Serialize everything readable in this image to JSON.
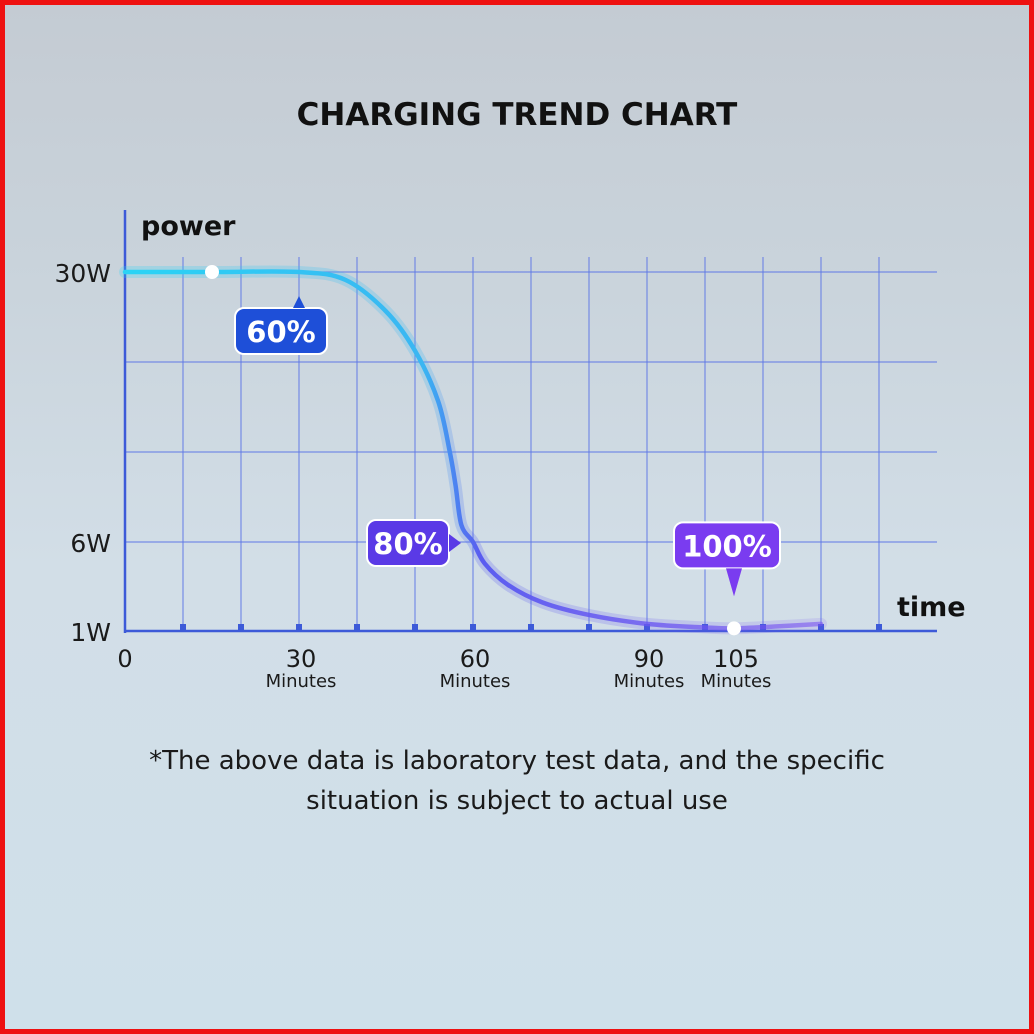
{
  "colors": {
    "grid": "#5f78e6",
    "axis": "#3d5ad8",
    "curve_start": "#2ad4f5",
    "curve_end": "#6a3cf0",
    "badge_60": "#1e4fd8",
    "badge_80": "#5a3ae6",
    "badge_100": "#7a3cf0",
    "frame": "#ee1111"
  },
  "footnote": {
    "line1": "*The above data is laboratory test data, and the specific",
    "line2": "situation is subject to actual use"
  },
  "chart_data": {
    "type": "line",
    "title": "CHARGING TREND CHART",
    "xlabel": "time",
    "ylabel": "power",
    "x_ticks": [
      {
        "value": 0,
        "label": "0",
        "unit": ""
      },
      {
        "value": 30,
        "label": "30",
        "unit": "Minutes"
      },
      {
        "value": 60,
        "label": "60",
        "unit": "Minutes"
      },
      {
        "value": 90,
        "label": "90",
        "unit": "Minutes"
      },
      {
        "value": 105,
        "label": "105",
        "unit": "Minutes"
      }
    ],
    "y_ticks": [
      {
        "value": 30,
        "label": "30W"
      },
      {
        "value": 6,
        "label": "6W"
      },
      {
        "value": 1,
        "label": "1W"
      }
    ],
    "xlim": [
      0,
      140
    ],
    "ylim": [
      0,
      30
    ],
    "grid": true,
    "series": [
      {
        "points": [
          [
            0,
            30
          ],
          [
            15,
            30
          ],
          [
            30,
            30
          ],
          [
            38,
            29.3
          ],
          [
            45,
            26.5
          ],
          [
            50,
            23
          ],
          [
            54,
            18.5
          ],
          [
            56,
            14
          ],
          [
            57,
            11
          ],
          [
            58,
            7.5
          ],
          [
            60,
            6
          ],
          [
            62,
            4.8
          ],
          [
            66,
            3.6
          ],
          [
            72,
            2.6
          ],
          [
            80,
            1.9
          ],
          [
            90,
            1.4
          ],
          [
            100,
            1.2
          ],
          [
            105,
            1.15
          ],
          [
            112,
            1.25
          ],
          [
            120,
            1.4
          ]
        ]
      }
    ],
    "annotations": [
      {
        "label": "60%",
        "x": 30,
        "y": 30,
        "position": "below-left"
      },
      {
        "label": "80%",
        "x": 60,
        "y": 6,
        "position": "left"
      },
      {
        "label": "100%",
        "x": 105,
        "y": 1.15,
        "position": "above"
      }
    ],
    "markers": [
      {
        "x": 15,
        "y": 30
      },
      {
        "x": 105,
        "y": 1.15
      }
    ]
  }
}
